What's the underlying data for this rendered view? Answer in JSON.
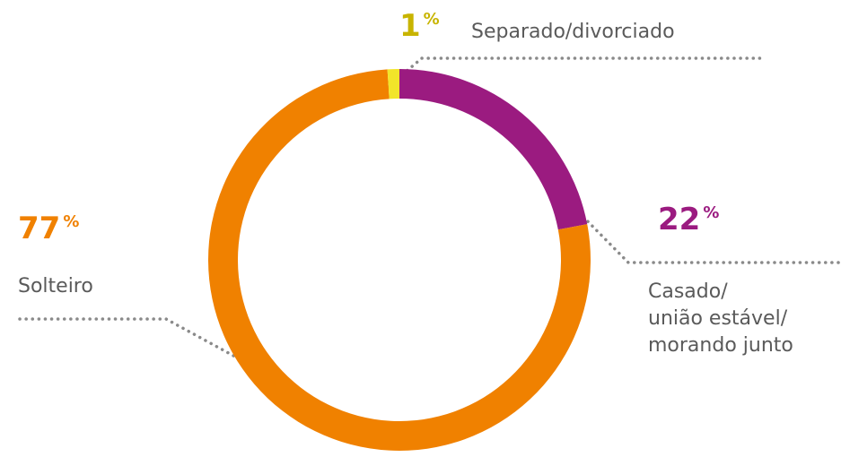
{
  "chart_data": {
    "type": "donut",
    "categories": [
      "Casado/\nunião estável/\nmorando junto",
      "Solteiro",
      "Separado/divorciado"
    ],
    "values": [
      22,
      77,
      1
    ],
    "value_labels": [
      "22%",
      "77%",
      "1%"
    ],
    "colors": [
      "#9b1b80",
      "#f08100",
      "#f2e52a"
    ],
    "label_colors": [
      "#9b1b80",
      "#f08100",
      "#c8b400"
    ]
  }
}
